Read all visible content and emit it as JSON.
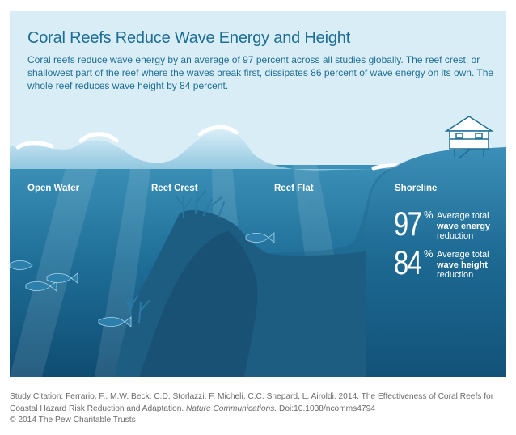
{
  "title": "Coral Reefs Reduce Wave Energy and Height",
  "intro": "Coral reefs reduce wave energy by an average of 97 percent across all studies globally. The reef crest, or shallowest part of the reef where the waves break first, dissipates 86 percent of wave energy on its own. The whole reef reduces wave height by 84 percent.",
  "zones": {
    "open_water": "Open Water",
    "reef_crest": "Reef Crest",
    "reef_flat": "Reef Flat",
    "shoreline": "Shoreline"
  },
  "stats": {
    "energy": {
      "value": "97",
      "unit": "%",
      "line1": "Average total",
      "line2": "wave energy",
      "line3": "reduction"
    },
    "height": {
      "value": "84",
      "unit": "%",
      "line1": "Average total",
      "line2": "wave height",
      "line3": "reduction"
    }
  },
  "citation": {
    "text": "Study Citation: Ferrario, F., M.W. Beck, C.D. Storlazzi, F. Micheli, C.C. Shepard, L. Airoldi. 2014. The Effectiveness of Coral Reefs for Coastal Hazard Risk Reduction and Adaptation.",
    "journal": "Nature Communications.",
    "doi": "Doi:10.1038/ncomms4794",
    "copyright": "© 2014 The Pew Charitable Trusts"
  },
  "colors": {
    "title": "#1e6e96",
    "sky": "#d9edf6",
    "water_surface": "#2f86ad",
    "water_deep": "#0f4d73",
    "reef": "#1f5c80",
    "wave_foam": "#ffffff"
  },
  "icons": [
    "house-icon",
    "fish-icon",
    "coral-icon"
  ]
}
